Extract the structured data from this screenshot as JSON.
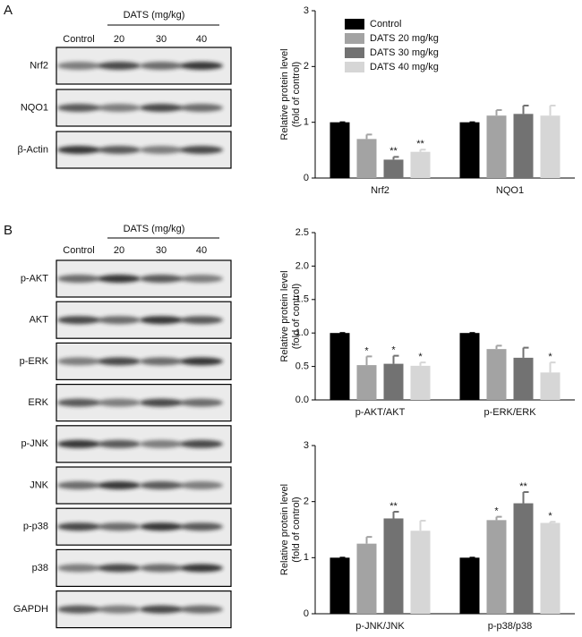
{
  "blots": [
    {
      "panel_label": "A",
      "group_label": "DATS (mg/kg)",
      "lanes": [
        "Control",
        "20",
        "30",
        "40"
      ],
      "rows": [
        "Nrf2",
        "NQO1",
        "β-Actin"
      ]
    },
    {
      "panel_label": "B",
      "group_label": "DATS (mg/kg)",
      "lanes": [
        "Control",
        "20",
        "30",
        "40"
      ],
      "rows": [
        "p-AKT",
        "AKT",
        "p-ERK",
        "ERK",
        "p-JNK",
        "JNK",
        "p-p38",
        "p38",
        "GAPDH"
      ]
    }
  ],
  "chart_data": [
    {
      "type": "bar",
      "ylabel": [
        "Relative protein level",
        "(fold of control)"
      ],
      "categories": [
        "Nrf2",
        "NQO1"
      ],
      "ylim": [
        0,
        3
      ],
      "yticks": [
        0,
        1,
        2,
        3
      ],
      "legend": "upper left",
      "series": [
        {
          "name": "Control",
          "color": "#000000",
          "values": [
            1,
            1
          ],
          "errors": [
            0,
            0
          ],
          "significance": [
            null,
            null
          ]
        },
        {
          "name": "DATS 20 mg/kg",
          "color": "#a3a3a3",
          "values": [
            0.7,
            1.12
          ],
          "errors": [
            0.08,
            0.1
          ],
          "significance": [
            null,
            null
          ]
        },
        {
          "name": "DATS 30 mg/kg",
          "color": "#727272",
          "values": [
            0.33,
            1.15
          ],
          "errors": [
            0.05,
            0.15
          ],
          "significance": [
            "**",
            null
          ]
        },
        {
          "name": "DATS 40 mg/kg",
          "color": "#d6d6d6",
          "values": [
            0.47,
            1.12
          ],
          "errors": [
            0.04,
            0.18
          ],
          "significance": [
            "**",
            null
          ]
        }
      ]
    },
    {
      "type": "bar",
      "ylabel": [
        "Relative protein level",
        "(fold of control)"
      ],
      "categories": [
        "p-AKT/AKT",
        "p-ERK/ERK"
      ],
      "ylim": [
        0,
        2.5
      ],
      "yticks": [
        {
          "value": 0,
          "label": "0.0"
        },
        {
          "value": 0.5,
          "label": "0.5"
        },
        {
          "value": 1,
          "label": "1.0"
        },
        {
          "value": 1.5,
          "label": "1.5"
        },
        {
          "value": 2,
          "label": "2.0"
        },
        {
          "value": 2.5,
          "label": "2.5"
        }
      ],
      "series": [
        {
          "name": "Control",
          "color": "#000000",
          "values": [
            1,
            1
          ],
          "errors": [
            0,
            0
          ],
          "significance": [
            null,
            null
          ]
        },
        {
          "name": "DATS 20 mg/kg",
          "color": "#a3a3a3",
          "values": [
            0.52,
            0.76
          ],
          "errors": [
            0.13,
            0.05
          ],
          "significance": [
            "*",
            null
          ]
        },
        {
          "name": "DATS 30 mg/kg",
          "color": "#727272",
          "values": [
            0.54,
            0.63
          ],
          "errors": [
            0.12,
            0.15
          ],
          "significance": [
            "*",
            null
          ]
        },
        {
          "name": "DATS 40 mg/kg",
          "color": "#d6d6d6",
          "values": [
            0.51,
            0.41
          ],
          "errors": [
            0.05,
            0.15
          ],
          "significance": [
            "*",
            "*"
          ]
        }
      ]
    },
    {
      "type": "bar",
      "ylabel": [
        "Relative protein level",
        "(fold of control)"
      ],
      "categories": [
        "p-JNK/JNK",
        "p-p38/p38"
      ],
      "ylim": [
        0,
        3
      ],
      "yticks": [
        0,
        1,
        2,
        3
      ],
      "series": [
        {
          "name": "Control",
          "color": "#000000",
          "values": [
            1,
            1
          ],
          "errors": [
            0,
            0
          ],
          "significance": [
            null,
            null
          ]
        },
        {
          "name": "DATS 20 mg/kg",
          "color": "#a3a3a3",
          "values": [
            1.25,
            1.67
          ],
          "errors": [
            0.12,
            0.06
          ],
          "significance": [
            null,
            "*"
          ]
        },
        {
          "name": "DATS 30 mg/kg",
          "color": "#727272",
          "values": [
            1.7,
            1.97
          ],
          "errors": [
            0.12,
            0.2
          ],
          "significance": [
            "**",
            "**"
          ]
        },
        {
          "name": "DATS 40 mg/kg",
          "color": "#d6d6d6",
          "values": [
            1.48,
            1.62
          ],
          "errors": [
            0.18,
            0.02
          ],
          "significance": [
            null,
            "*"
          ]
        }
      ]
    }
  ]
}
